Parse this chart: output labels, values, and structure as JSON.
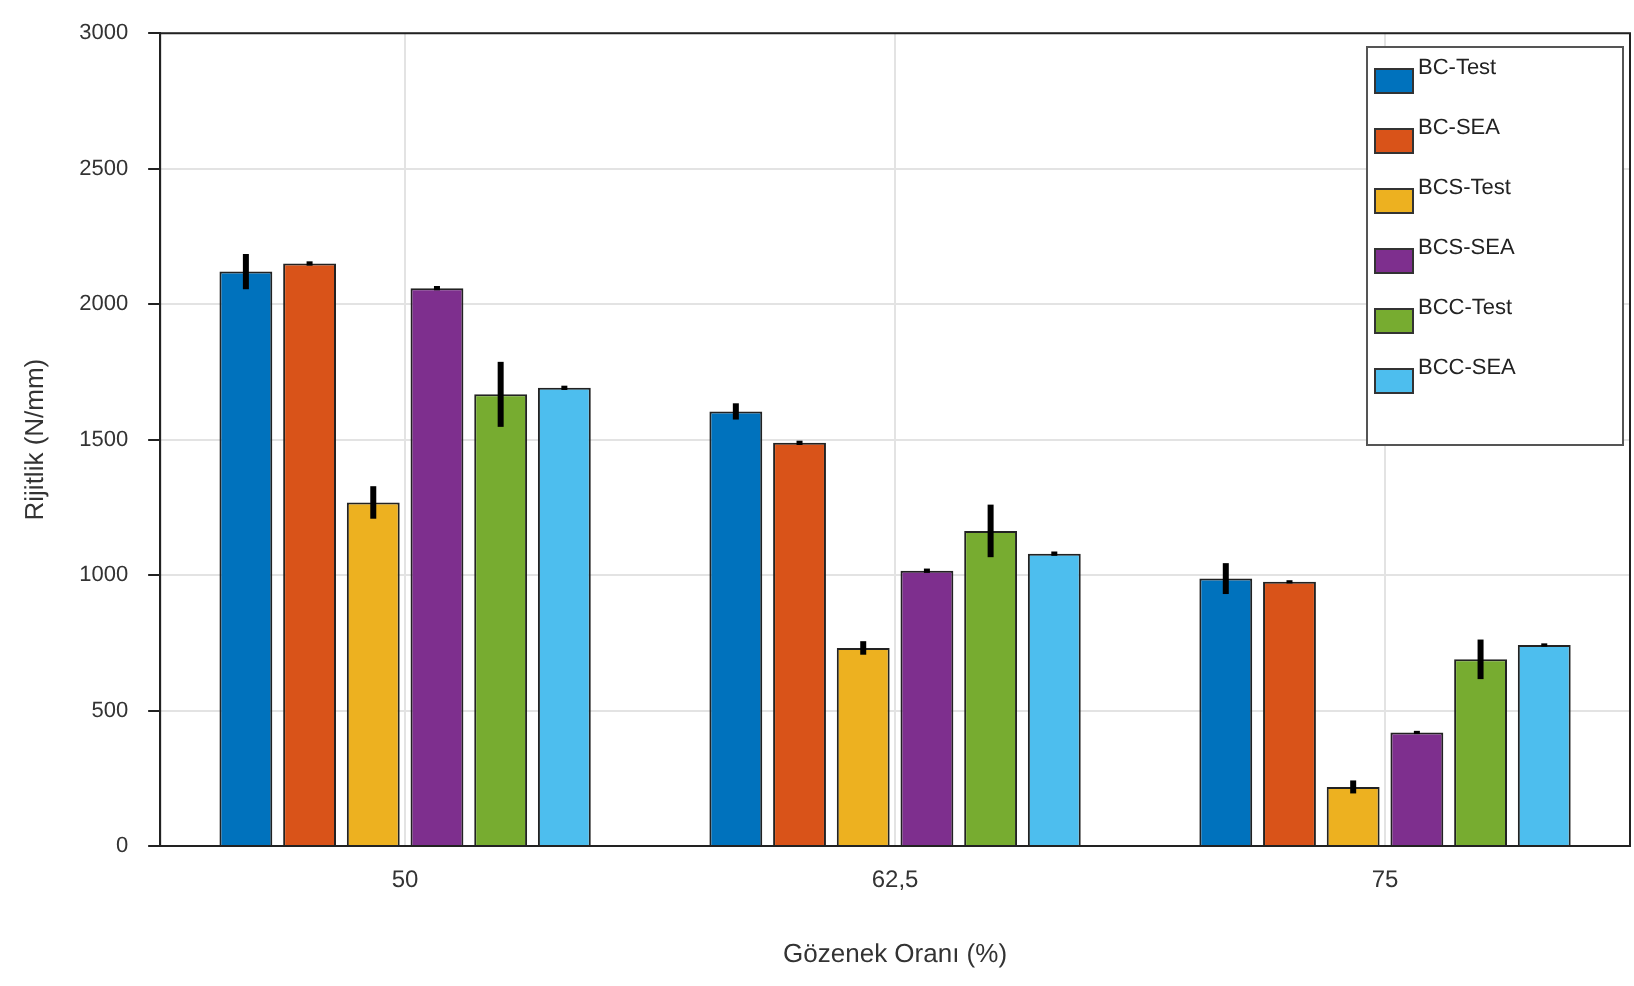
{
  "chart_data": {
    "type": "bar",
    "xlabel": "Gözenek Oranı (%)",
    "ylabel": "Rijitlik (N/mm)",
    "categories": [
      "50",
      "62,5",
      "75"
    ],
    "series": [
      {
        "name": "BC-Test",
        "color": "#0072bd",
        "values": [
          2120,
          1604,
          987
        ],
        "errors": [
          65,
          30,
          57
        ]
      },
      {
        "name": "BC-SEA",
        "color": "#d95319",
        "values": [
          2150,
          1488,
          975
        ],
        "errors": [
          8,
          8,
          6
        ]
      },
      {
        "name": "BCS-Test",
        "color": "#edb120",
        "values": [
          1268,
          731,
          218
        ],
        "errors": [
          60,
          25,
          24
        ]
      },
      {
        "name": "BCS-SEA",
        "color": "#7e2f8e",
        "values": [
          2059,
          1016,
          419
        ],
        "errors": [
          8,
          8,
          6
        ]
      },
      {
        "name": "BCC-Test",
        "color": "#77ac30",
        "values": [
          1667,
          1163,
          689
        ],
        "errors": [
          120,
          97,
          73
        ]
      },
      {
        "name": "BCC-SEA",
        "color": "#4dbeee",
        "values": [
          1691,
          1079,
          742
        ],
        "errors": [
          8,
          8,
          6
        ]
      }
    ],
    "ylim": [
      0,
      3000
    ],
    "yticks": [
      0,
      500,
      1000,
      1500,
      2000,
      2500,
      3000
    ],
    "grid": true,
    "legend": "top right"
  }
}
